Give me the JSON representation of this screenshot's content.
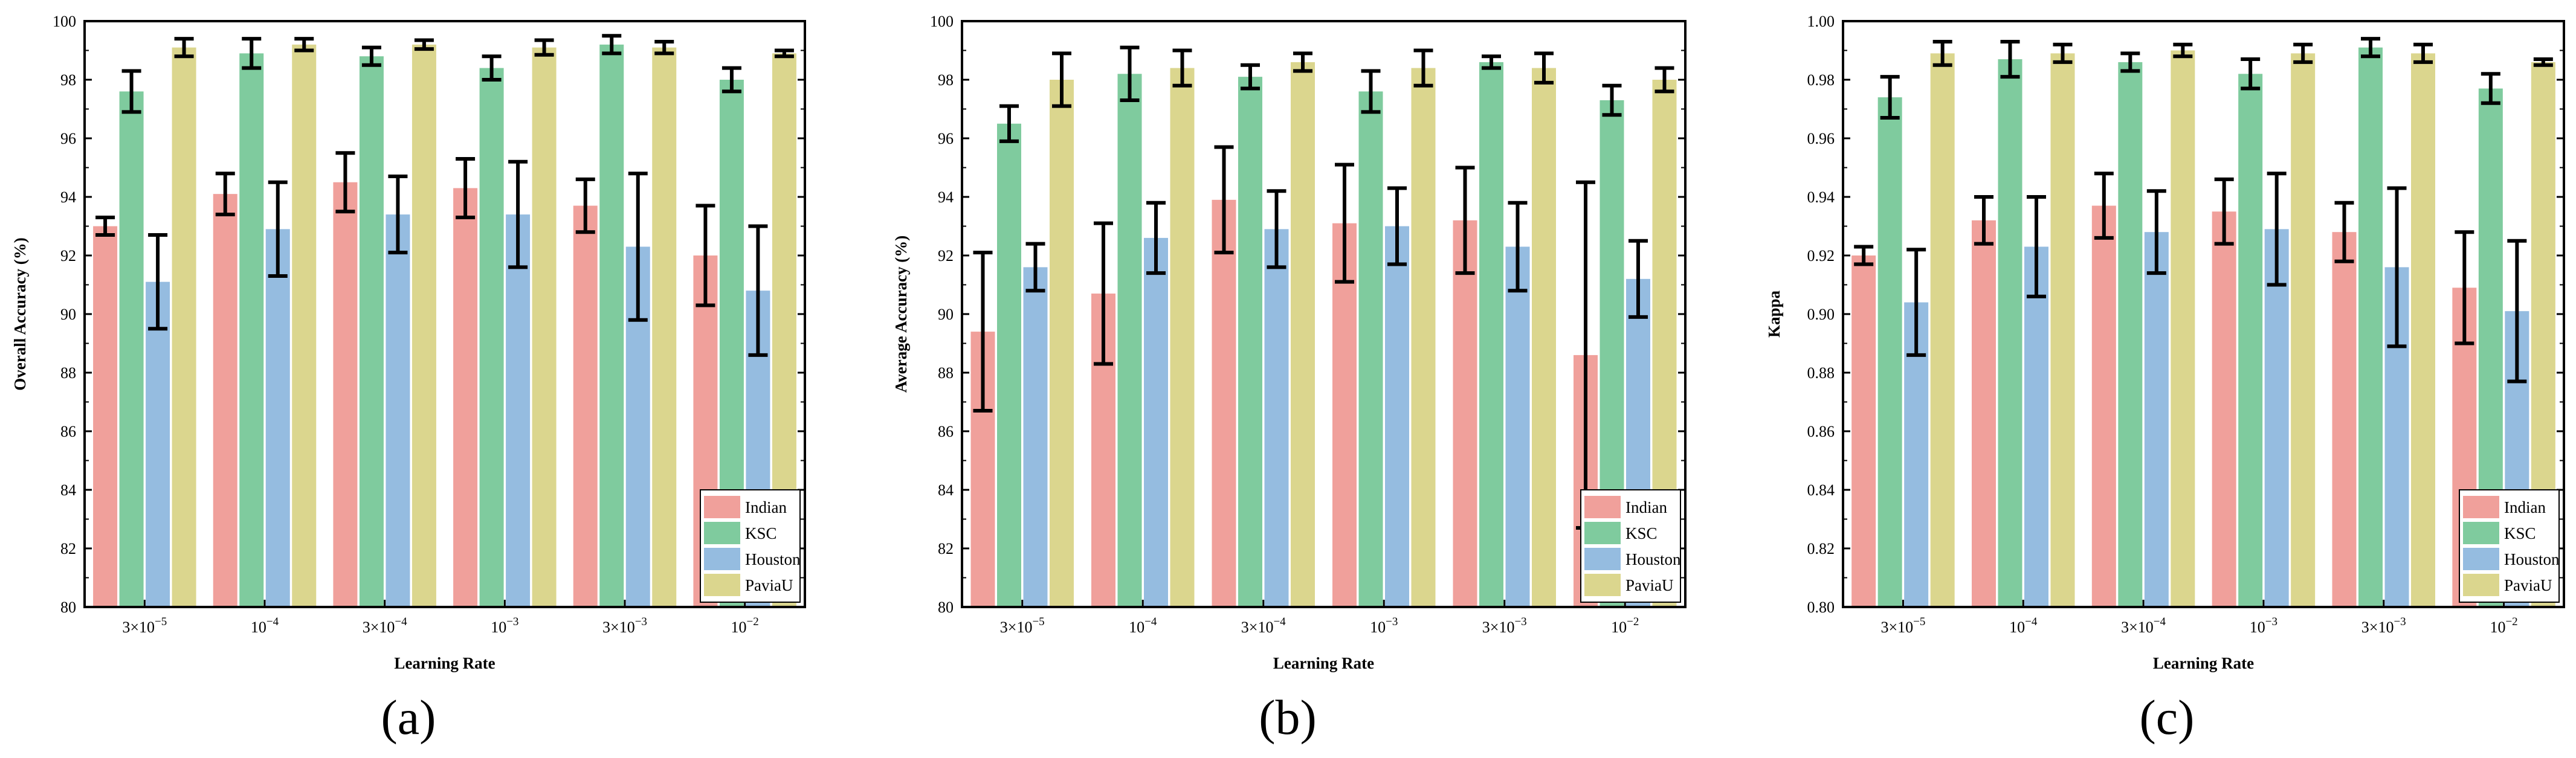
{
  "figure": {
    "panel_labels": [
      "(a)",
      "(b)",
      "(c)"
    ],
    "series_colors": {
      "Indian": "#f0a09b",
      "KSC": "#7fcb9e",
      "Houston": "#95bce0",
      "PaviaU": "#dbd68e"
    },
    "errorbar_color": "#000000"
  },
  "chart_data": [
    {
      "type": "bar",
      "title": "",
      "xlabel": "Learning Rate",
      "ylabel": "Overall Accuracy (%)",
      "ylim": [
        80,
        100
      ],
      "yticks": [
        "80",
        "82",
        "84",
        "86",
        "88",
        "90",
        "92",
        "94",
        "96",
        "98",
        "100"
      ],
      "yticks_values": [
        80,
        82,
        84,
        86,
        88,
        90,
        92,
        94,
        96,
        98,
        100
      ],
      "categories": [
        {
          "base": "3×10",
          "exp": "−5"
        },
        {
          "base": "10",
          "exp": "−4"
        },
        {
          "base": "3×10",
          "exp": "−4"
        },
        {
          "base": "10",
          "exp": "−3"
        },
        {
          "base": "3×10",
          "exp": "−3"
        },
        {
          "base": "10",
          "exp": "−2"
        }
      ],
      "legend": {
        "position": "bottom-right",
        "entries": [
          "Indian",
          "KSC",
          "Houston",
          "PaviaU"
        ]
      },
      "series": [
        {
          "name": "Indian",
          "values": [
            93.0,
            94.1,
            94.5,
            94.3,
            93.7,
            92.0
          ],
          "errors": [
            0.3,
            0.7,
            1.0,
            1.0,
            0.9,
            1.7
          ]
        },
        {
          "name": "KSC",
          "values": [
            97.6,
            98.9,
            98.8,
            98.4,
            99.2,
            98.0
          ],
          "errors": [
            0.7,
            0.5,
            0.3,
            0.4,
            0.3,
            0.4
          ]
        },
        {
          "name": "Houston",
          "values": [
            91.1,
            92.9,
            93.4,
            93.4,
            92.3,
            90.8
          ],
          "errors": [
            1.6,
            1.6,
            1.3,
            1.8,
            2.5,
            2.2
          ]
        },
        {
          "name": "PaviaU",
          "values": [
            99.1,
            99.2,
            99.2,
            99.1,
            99.1,
            98.9
          ],
          "errors": [
            0.3,
            0.2,
            0.15,
            0.25,
            0.2,
            0.1
          ]
        }
      ]
    },
    {
      "type": "bar",
      "title": "",
      "xlabel": "Learning Rate",
      "ylabel": "Average Accuracy (%)",
      "ylim": [
        80,
        100
      ],
      "yticks": [
        "80",
        "82",
        "84",
        "86",
        "88",
        "90",
        "92",
        "94",
        "96",
        "98",
        "100"
      ],
      "yticks_values": [
        80,
        82,
        84,
        86,
        88,
        90,
        92,
        94,
        96,
        98,
        100
      ],
      "categories": [
        {
          "base": "3×10",
          "exp": "−5"
        },
        {
          "base": "10",
          "exp": "−4"
        },
        {
          "base": "3×10",
          "exp": "−4"
        },
        {
          "base": "10",
          "exp": "−3"
        },
        {
          "base": "3×10",
          "exp": "−3"
        },
        {
          "base": "10",
          "exp": "−2"
        }
      ],
      "legend": {
        "position": "bottom-right",
        "entries": [
          "Indian",
          "KSC",
          "Houston",
          "PaviaU"
        ]
      },
      "series": [
        {
          "name": "Indian",
          "values": [
            89.4,
            90.7,
            93.9,
            93.1,
            93.2,
            88.6
          ],
          "errors": [
            2.7,
            2.4,
            1.8,
            2.0,
            1.8,
            5.9
          ]
        },
        {
          "name": "KSC",
          "values": [
            96.5,
            98.2,
            98.1,
            97.6,
            98.6,
            97.3
          ],
          "errors": [
            0.6,
            0.9,
            0.4,
            0.7,
            0.2,
            0.5
          ]
        },
        {
          "name": "Houston",
          "values": [
            91.6,
            92.6,
            92.9,
            93.0,
            92.3,
            91.2
          ],
          "errors": [
            0.8,
            1.2,
            1.3,
            1.3,
            1.5,
            1.3
          ]
        },
        {
          "name": "PaviaU",
          "values": [
            98.0,
            98.4,
            98.6,
            98.4,
            98.4,
            98.0
          ],
          "errors": [
            0.9,
            0.6,
            0.3,
            0.6,
            0.5,
            0.4
          ]
        }
      ]
    },
    {
      "type": "bar",
      "title": "",
      "xlabel": "Learning Rate",
      "ylabel": "Kappa",
      "ylim": [
        0.8,
        1.0
      ],
      "yticks": [
        "0.80",
        "0.82",
        "0.84",
        "0.86",
        "0.88",
        "0.90",
        "0.92",
        "0.94",
        "0.96",
        "0.98",
        "1.00"
      ],
      "yticks_values": [
        0.8,
        0.82,
        0.84,
        0.86,
        0.88,
        0.9,
        0.92,
        0.94,
        0.96,
        0.98,
        1.0
      ],
      "categories": [
        {
          "base": "3×10",
          "exp": "−5"
        },
        {
          "base": "10",
          "exp": "−4"
        },
        {
          "base": "3×10",
          "exp": "−4"
        },
        {
          "base": "10",
          "exp": "−3"
        },
        {
          "base": "3×10",
          "exp": "−3"
        },
        {
          "base": "10",
          "exp": "−2"
        }
      ],
      "legend": {
        "position": "bottom-right",
        "entries": [
          "Indian",
          "KSC",
          "Houston",
          "PaviaU"
        ]
      },
      "series": [
        {
          "name": "Indian",
          "values": [
            0.92,
            0.932,
            0.937,
            0.935,
            0.928,
            0.909
          ],
          "errors": [
            0.003,
            0.008,
            0.011,
            0.011,
            0.01,
            0.019
          ]
        },
        {
          "name": "KSC",
          "values": [
            0.974,
            0.987,
            0.986,
            0.982,
            0.991,
            0.977
          ],
          "errors": [
            0.007,
            0.006,
            0.003,
            0.005,
            0.003,
            0.005
          ]
        },
        {
          "name": "Houston",
          "values": [
            0.904,
            0.923,
            0.928,
            0.929,
            0.916,
            0.901
          ],
          "errors": [
            0.018,
            0.017,
            0.014,
            0.019,
            0.027,
            0.024
          ]
        },
        {
          "name": "PaviaU",
          "values": [
            0.989,
            0.989,
            0.99,
            0.989,
            0.989,
            0.986
          ],
          "errors": [
            0.004,
            0.003,
            0.002,
            0.003,
            0.003,
            0.001
          ]
        }
      ]
    }
  ]
}
